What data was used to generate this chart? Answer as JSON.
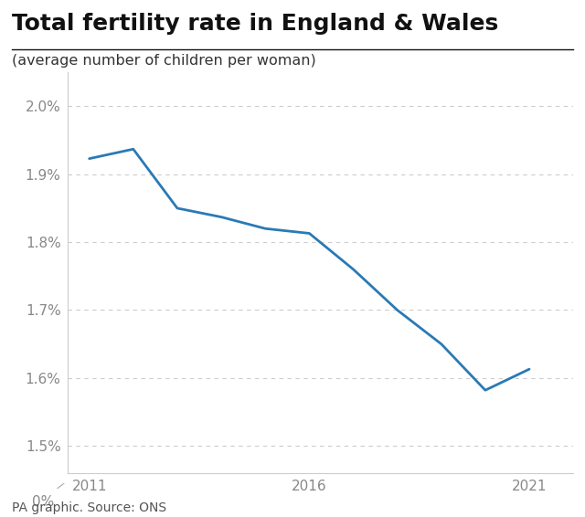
{
  "title": "Total fertility rate in England & Wales",
  "subtitle": "(average number of children per woman)",
  "source": "PA graphic. Source: ONS",
  "line_color": "#2a7ab5",
  "line_width": 2.0,
  "years": [
    2011,
    2012,
    2013,
    2014,
    2015,
    2016,
    2017,
    2018,
    2019,
    2020,
    2021
  ],
  "values": [
    1.923,
    1.937,
    1.85,
    1.837,
    1.82,
    1.813,
    1.76,
    1.7,
    1.65,
    1.582,
    1.613
  ],
  "yticks_data": [
    1.5,
    1.6,
    1.7,
    1.8,
    1.9,
    2.0
  ],
  "ytick_labels": [
    "1.5%",
    "1.6%",
    "1.7%",
    "1.8%",
    "1.9%",
    "2.0%"
  ],
  "xticks": [
    2011,
    2016,
    2021
  ],
  "ylim_bottom": 1.46,
  "ylim_top": 2.05,
  "grid_color": "#cccccc",
  "background_color": "#ffffff",
  "title_fontsize": 18,
  "subtitle_fontsize": 11.5,
  "tick_fontsize": 11,
  "source_fontsize": 10
}
